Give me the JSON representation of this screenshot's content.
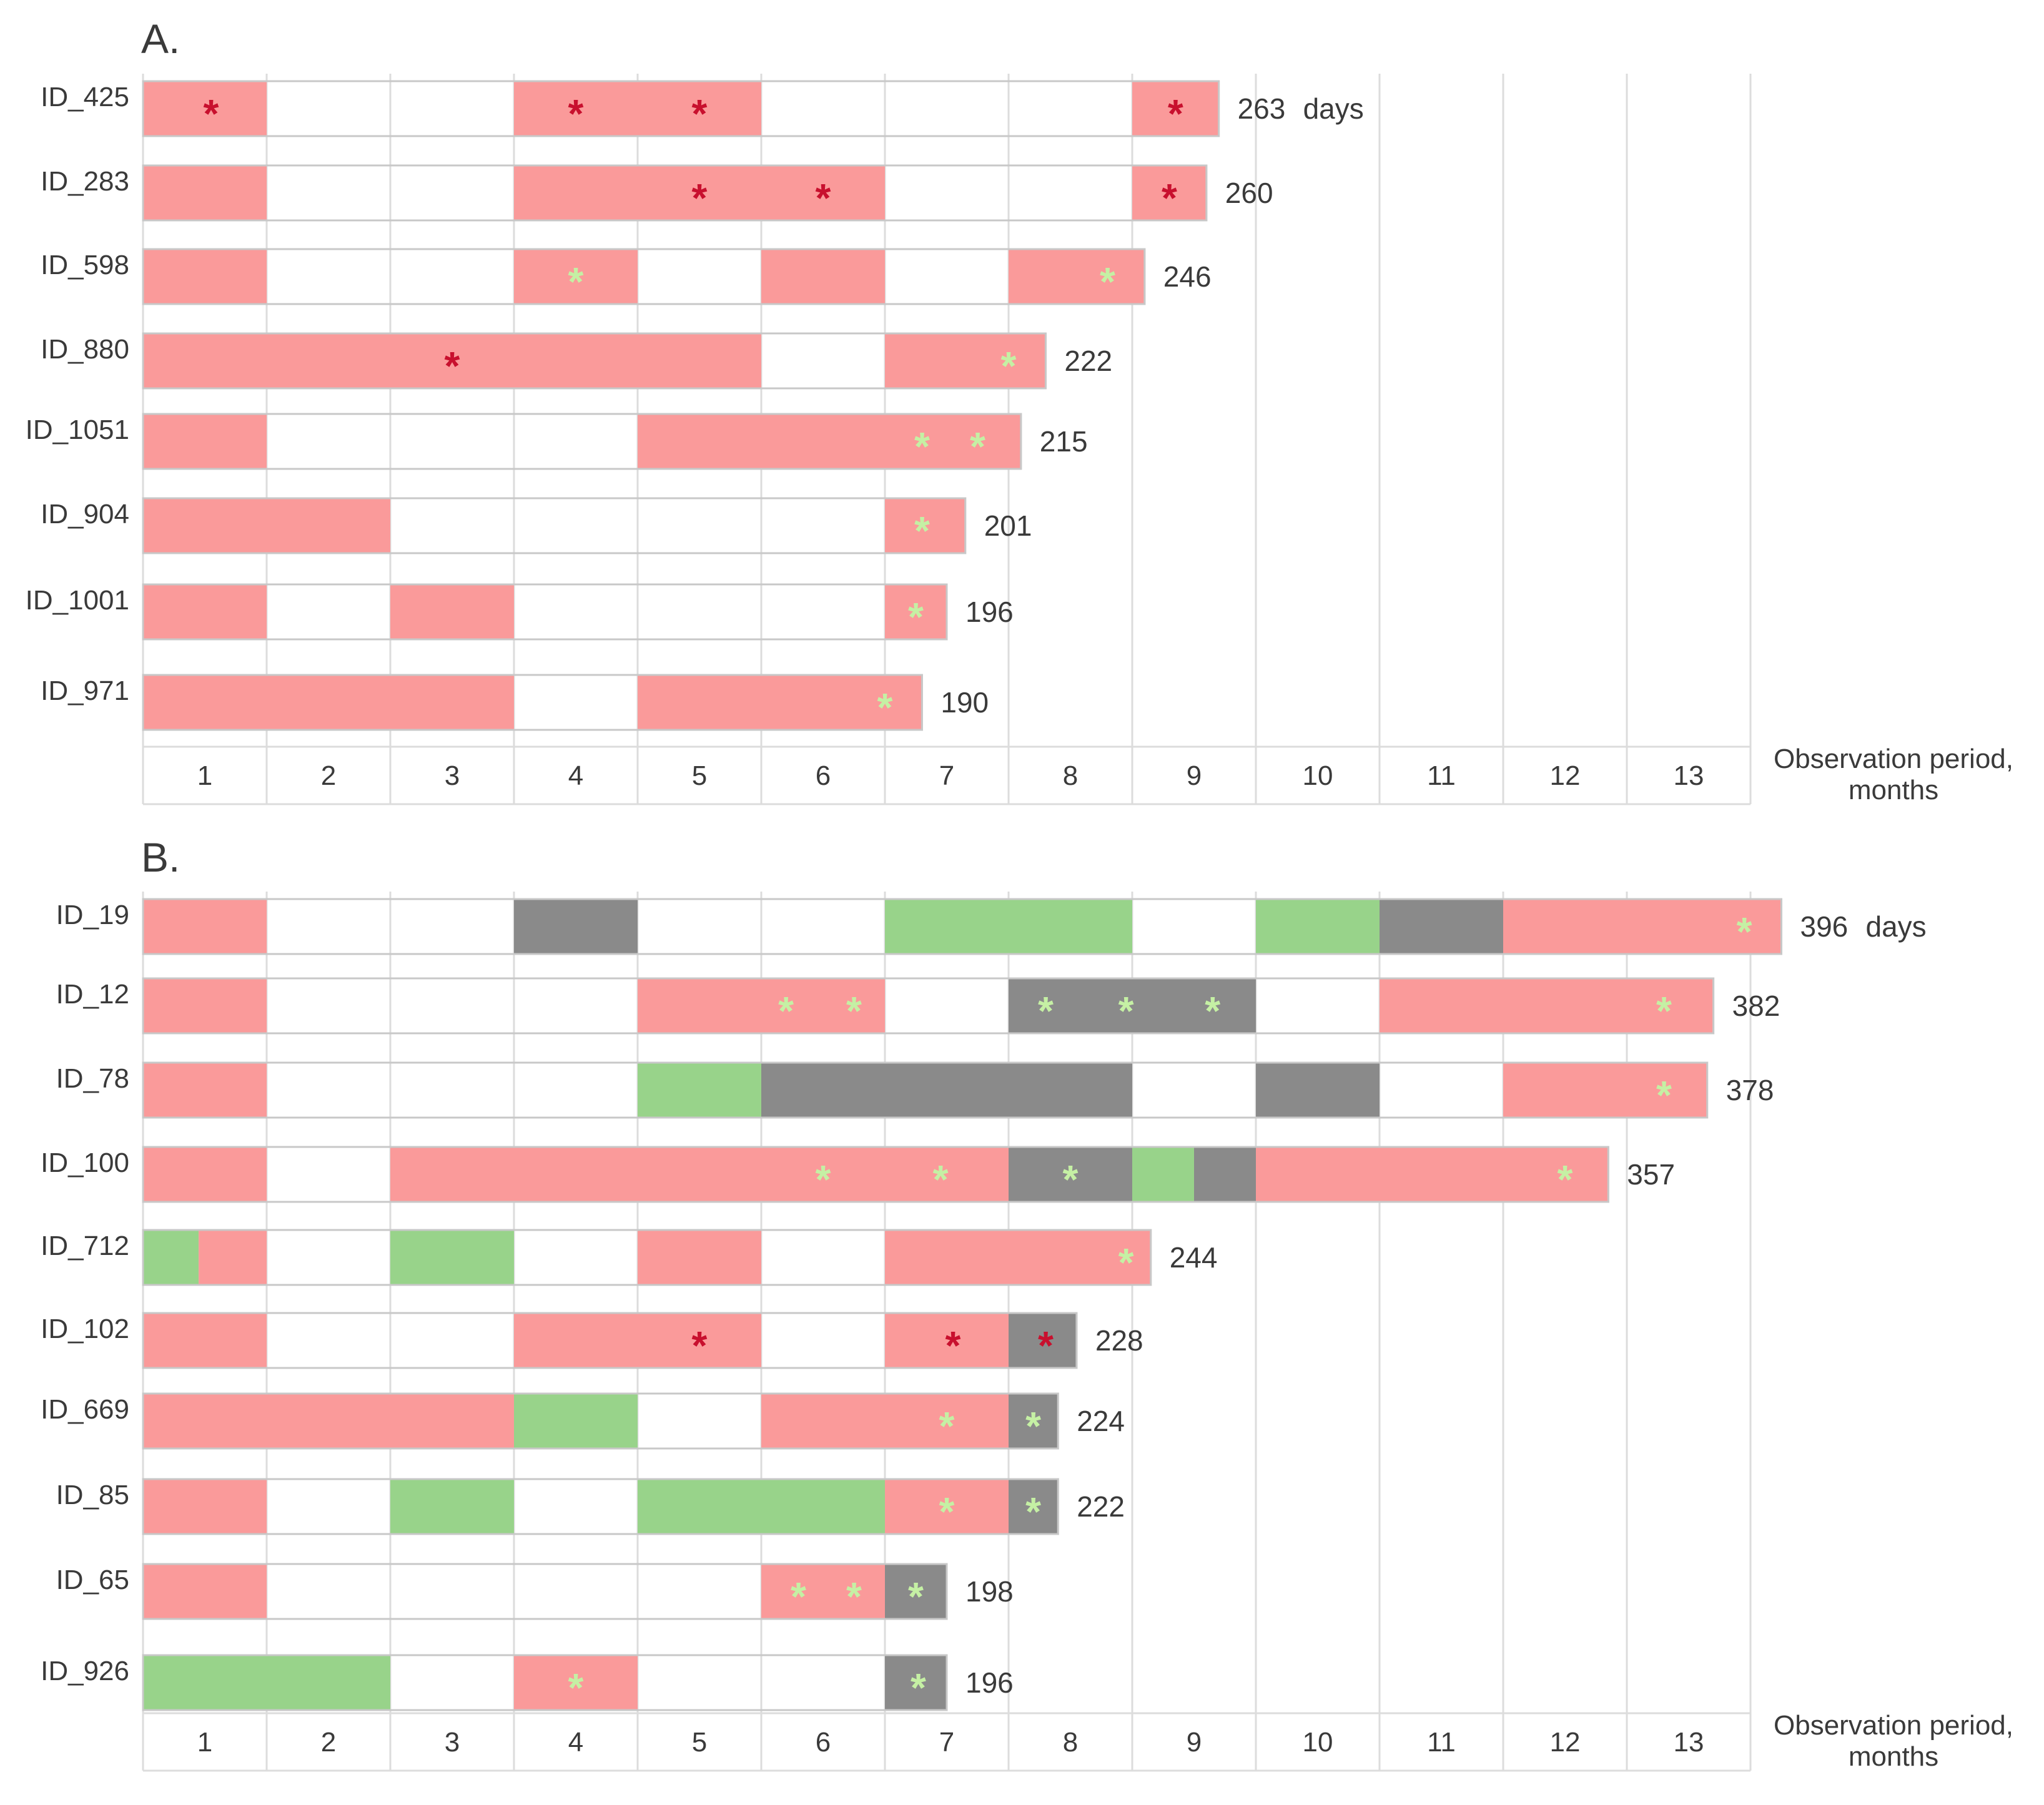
{
  "colors": {
    "red_segment": "#fa9a9a",
    "green_segment": "#98d38a",
    "gray_segment": "#8a8a8a",
    "empty_segment": "#ffffff",
    "red_star": "#c8102e",
    "green_star": "#c5f0a4",
    "grid": "#dcdcdc",
    "bar_border": "#c8c8c8"
  },
  "axis": {
    "ticks": [
      "1",
      "2",
      "3",
      "4",
      "5",
      "6",
      "7",
      "8",
      "9",
      "10",
      "11",
      "12",
      "13"
    ],
    "title_line1": "Observation period,",
    "title_line2": "months"
  },
  "chart_data": [
    {
      "type": "timeline",
      "panel": "A",
      "title": "A.",
      "xlabel": "Observation period, months",
      "xlim": [
        0,
        13
      ],
      "units_label": "days",
      "rows": [
        {
          "id": "ID_425",
          "total": "263",
          "show_units": true,
          "end": 8.7,
          "segments": [
            {
              "start": 0,
              "end": 1,
              "color": "red"
            },
            {
              "start": 3,
              "end": 5,
              "color": "red"
            },
            {
              "start": 8,
              "end": 8.7,
              "color": "red"
            }
          ],
          "markers": [
            {
              "x": 0.55,
              "color": "red"
            },
            {
              "x": 3.5,
              "color": "red"
            },
            {
              "x": 4.5,
              "color": "red"
            },
            {
              "x": 8.35,
              "color": "red"
            }
          ]
        },
        {
          "id": "ID_283",
          "total": "260",
          "show_units": false,
          "end": 8.6,
          "segments": [
            {
              "start": 0,
              "end": 1,
              "color": "red"
            },
            {
              "start": 3,
              "end": 6,
              "color": "red"
            },
            {
              "start": 8,
              "end": 8.6,
              "color": "red"
            }
          ],
          "markers": [
            {
              "x": 4.5,
              "color": "red"
            },
            {
              "x": 5.5,
              "color": "red"
            },
            {
              "x": 8.3,
              "color": "red"
            }
          ]
        },
        {
          "id": "ID_598",
          "total": "246",
          "show_units": false,
          "end": 8.1,
          "segments": [
            {
              "start": 0,
              "end": 1,
              "color": "red"
            },
            {
              "start": 3,
              "end": 4,
              "color": "red"
            },
            {
              "start": 5,
              "end": 6,
              "color": "red"
            },
            {
              "start": 7,
              "end": 8.1,
              "color": "red"
            }
          ],
          "markers": [
            {
              "x": 3.5,
              "color": "green"
            },
            {
              "x": 7.8,
              "color": "green"
            }
          ]
        },
        {
          "id": "ID_880",
          "total": "222",
          "show_units": false,
          "end": 7.3,
          "segments": [
            {
              "start": 0,
              "end": 5,
              "color": "red"
            },
            {
              "start": 6,
              "end": 7.3,
              "color": "red"
            }
          ],
          "markers": [
            {
              "x": 2.5,
              "color": "red"
            },
            {
              "x": 7.0,
              "color": "green"
            }
          ]
        },
        {
          "id": "ID_1051",
          "total": "215",
          "show_units": false,
          "end": 7.1,
          "segments": [
            {
              "start": 0,
              "end": 1,
              "color": "red"
            },
            {
              "start": 4,
              "end": 7.1,
              "color": "red"
            }
          ],
          "markers": [
            {
              "x": 6.3,
              "color": "green"
            },
            {
              "x": 6.75,
              "color": "green"
            }
          ]
        },
        {
          "id": "ID_904",
          "total": "201",
          "show_units": false,
          "end": 6.65,
          "segments": [
            {
              "start": 0,
              "end": 2,
              "color": "red"
            },
            {
              "start": 6,
              "end": 6.65,
              "color": "red"
            }
          ],
          "markers": [
            {
              "x": 6.3,
              "color": "green"
            }
          ]
        },
        {
          "id": "ID_1001",
          "total": "196",
          "show_units": false,
          "end": 6.5,
          "segments": [
            {
              "start": 0,
              "end": 1,
              "color": "red"
            },
            {
              "start": 2,
              "end": 3,
              "color": "red"
            },
            {
              "start": 6,
              "end": 6.5,
              "color": "red"
            }
          ],
          "markers": [
            {
              "x": 6.25,
              "color": "green"
            }
          ]
        },
        {
          "id": "ID_971",
          "total": "190",
          "show_units": false,
          "end": 6.3,
          "segments": [
            {
              "start": 0,
              "end": 3,
              "color": "red"
            },
            {
              "start": 4,
              "end": 6.3,
              "color": "red"
            }
          ],
          "markers": [
            {
              "x": 6.0,
              "color": "green"
            }
          ]
        }
      ]
    },
    {
      "type": "timeline",
      "panel": "B",
      "title": "B.",
      "xlabel": "Observation period, months",
      "xlim": [
        0,
        13
      ],
      "units_label": "days",
      "rows": [
        {
          "id": "ID_19",
          "total": "396",
          "show_units": true,
          "end": 13.25,
          "segments": [
            {
              "start": 0,
              "end": 1,
              "color": "red"
            },
            {
              "start": 3,
              "end": 4,
              "color": "gray"
            },
            {
              "start": 6,
              "end": 8,
              "color": "green"
            },
            {
              "start": 9,
              "end": 10,
              "color": "green"
            },
            {
              "start": 10,
              "end": 11,
              "color": "gray"
            },
            {
              "start": 11,
              "end": 13.25,
              "color": "red"
            }
          ],
          "markers": [
            {
              "x": 12.95,
              "color": "green"
            }
          ]
        },
        {
          "id": "ID_12",
          "total": "382",
          "show_units": false,
          "end": 12.7,
          "segments": [
            {
              "start": 0,
              "end": 1,
              "color": "red"
            },
            {
              "start": 4,
              "end": 6,
              "color": "red"
            },
            {
              "start": 7,
              "end": 9,
              "color": "gray"
            },
            {
              "start": 10,
              "end": 12.7,
              "color": "red"
            }
          ],
          "markers": [
            {
              "x": 5.2,
              "color": "green"
            },
            {
              "x": 5.75,
              "color": "green"
            },
            {
              "x": 7.3,
              "color": "green"
            },
            {
              "x": 7.95,
              "color": "green"
            },
            {
              "x": 8.65,
              "color": "green"
            },
            {
              "x": 12.3,
              "color": "green"
            }
          ]
        },
        {
          "id": "ID_78",
          "total": "378",
          "show_units": false,
          "end": 12.65,
          "segments": [
            {
              "start": 0,
              "end": 1,
              "color": "red"
            },
            {
              "start": 4,
              "end": 5,
              "color": "green"
            },
            {
              "start": 5,
              "end": 8,
              "color": "gray"
            },
            {
              "start": 9,
              "end": 10,
              "color": "gray"
            },
            {
              "start": 11,
              "end": 12.65,
              "color": "red"
            }
          ],
          "markers": [
            {
              "x": 12.3,
              "color": "green"
            }
          ]
        },
        {
          "id": "ID_100",
          "total": "357",
          "show_units": false,
          "end": 11.85,
          "segments": [
            {
              "start": 0,
              "end": 1,
              "color": "red"
            },
            {
              "start": 2,
              "end": 7,
              "color": "red"
            },
            {
              "start": 7,
              "end": 8,
              "color": "gray"
            },
            {
              "start": 8,
              "end": 8.5,
              "color": "green"
            },
            {
              "start": 8.5,
              "end": 9,
              "color": "gray"
            },
            {
              "start": 9,
              "end": 11.85,
              "color": "red"
            }
          ],
          "markers": [
            {
              "x": 5.5,
              "color": "green"
            },
            {
              "x": 6.45,
              "color": "green"
            },
            {
              "x": 7.5,
              "color": "green"
            },
            {
              "x": 11.5,
              "color": "green"
            }
          ]
        },
        {
          "id": "ID_712",
          "total": "244",
          "show_units": false,
          "end": 8.15,
          "segments": [
            {
              "start": 0,
              "end": 0.45,
              "color": "green"
            },
            {
              "start": 0.45,
              "end": 1,
              "color": "red"
            },
            {
              "start": 2,
              "end": 3,
              "color": "green"
            },
            {
              "start": 4,
              "end": 5,
              "color": "red"
            },
            {
              "start": 6,
              "end": 8.15,
              "color": "red"
            }
          ],
          "markers": [
            {
              "x": 7.95,
              "color": "green"
            }
          ]
        },
        {
          "id": "ID_102",
          "total": "228",
          "show_units": false,
          "end": 7.55,
          "segments": [
            {
              "start": 0,
              "end": 1,
              "color": "red"
            },
            {
              "start": 3,
              "end": 5,
              "color": "red"
            },
            {
              "start": 6,
              "end": 7,
              "color": "red"
            },
            {
              "start": 7,
              "end": 7.55,
              "color": "gray"
            }
          ],
          "markers": [
            {
              "x": 4.5,
              "color": "red"
            },
            {
              "x": 6.55,
              "color": "red"
            },
            {
              "x": 7.3,
              "color": "red"
            }
          ]
        },
        {
          "id": "ID_669",
          "total": "224",
          "show_units": false,
          "end": 7.4,
          "segments": [
            {
              "start": 0,
              "end": 3,
              "color": "red"
            },
            {
              "start": 3,
              "end": 4,
              "color": "green"
            },
            {
              "start": 5,
              "end": 7,
              "color": "red"
            },
            {
              "start": 7,
              "end": 7.4,
              "color": "gray"
            }
          ],
          "markers": [
            {
              "x": 6.5,
              "color": "green"
            },
            {
              "x": 7.2,
              "color": "green"
            }
          ]
        },
        {
          "id": "ID_85",
          "total": "222",
          "show_units": false,
          "end": 7.4,
          "segments": [
            {
              "start": 0,
              "end": 1,
              "color": "red"
            },
            {
              "start": 2,
              "end": 3,
              "color": "green"
            },
            {
              "start": 4,
              "end": 6,
              "color": "green"
            },
            {
              "start": 6,
              "end": 7,
              "color": "red"
            },
            {
              "start": 7,
              "end": 7.4,
              "color": "gray"
            }
          ],
          "markers": [
            {
              "x": 6.5,
              "color": "green"
            },
            {
              "x": 7.2,
              "color": "green"
            }
          ]
        },
        {
          "id": "ID_65",
          "total": "198",
          "show_units": false,
          "end": 6.5,
          "segments": [
            {
              "start": 0,
              "end": 1,
              "color": "red"
            },
            {
              "start": 5,
              "end": 6,
              "color": "red"
            },
            {
              "start": 6,
              "end": 6.5,
              "color": "gray"
            }
          ],
          "markers": [
            {
              "x": 5.3,
              "color": "green"
            },
            {
              "x": 5.75,
              "color": "green"
            },
            {
              "x": 6.25,
              "color": "green"
            }
          ]
        },
        {
          "id": "ID_926",
          "total": "196",
          "show_units": false,
          "end": 6.5,
          "segments": [
            {
              "start": 0,
              "end": 2,
              "color": "green"
            },
            {
              "start": 3,
              "end": 4,
              "color": "red"
            },
            {
              "start": 6,
              "end": 6.5,
              "color": "gray"
            }
          ],
          "markers": [
            {
              "x": 3.5,
              "color": "green"
            },
            {
              "x": 6.27,
              "color": "green"
            }
          ]
        }
      ]
    }
  ]
}
